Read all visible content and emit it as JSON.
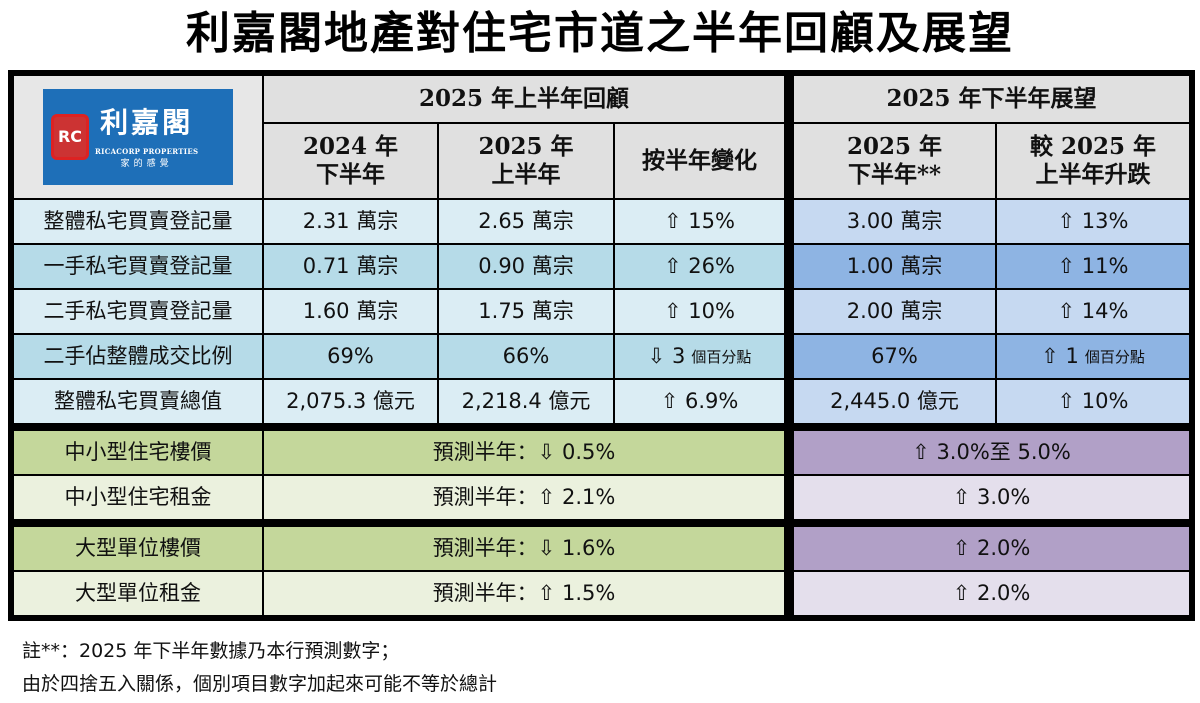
{
  "title": "利嘉閣地產對住宅市道之半年回顧及展望",
  "logo": {
    "mark": "RC",
    "cn": "利嘉閣",
    "en": "RICACORP PROPERTIES",
    "slogan": "家的感覺"
  },
  "headers": {
    "review": "2025 年上半年回顧",
    "outlook": "2025 年下半年展望",
    "cols": [
      [
        "2024 年",
        "下半年"
      ],
      [
        "2025 年",
        "上半年"
      ],
      [
        "按半年變化"
      ],
      [
        "2025 年",
        "下半年**"
      ],
      [
        "較 2025 年",
        "上半年升跌"
      ]
    ]
  },
  "rows": [
    {
      "label": "整體私宅買賣登記量",
      "v": [
        "2.31 萬宗",
        "2.65 萬宗",
        "⇧ 15%",
        "3.00 萬宗",
        "⇧ 13%"
      ]
    },
    {
      "label": "一手私宅買賣登記量",
      "v": [
        "0.71 萬宗",
        "0.90 萬宗",
        "⇧ 26%",
        "1.00 萬宗",
        "⇧ 11%"
      ]
    },
    {
      "label": "二手私宅買賣登記量",
      "v": [
        "1.60 萬宗",
        "1.75 萬宗",
        "⇧ 10%",
        "2.00 萬宗",
        "⇧ 14%"
      ]
    },
    {
      "label": "二手佔整體成交比例",
      "v": [
        "69%",
        "66%",
        "⇩ 3",
        "67%",
        "⇧ 1"
      ],
      "unit": "個百分點"
    },
    {
      "label": "整體私宅買賣總值",
      "v": [
        "2,075.3 億元",
        "2,218.4 億元",
        "⇧ 6.9%",
        "2,445.0 億元",
        "⇧ 10%"
      ]
    }
  ],
  "forecasts": [
    {
      "label": "中小型住宅樓價",
      "review": "預測半年：⇩ 0.5%",
      "outlook": "⇧ 3.0%至 5.0%"
    },
    {
      "label": "中小型住宅租金",
      "review": "預測半年：⇧ 2.1%",
      "outlook": "⇧ 3.0%"
    },
    {
      "label": "大型單位樓價",
      "review": "預測半年：⇩ 1.6%",
      "outlook": "⇧ 2.0%"
    },
    {
      "label": "大型單位租金",
      "review": "預測半年：⇧ 1.5%",
      "outlook": "⇧ 2.0%"
    }
  ],
  "notes": [
    "註**：2025 年下半年數據乃本行預測數字；",
    "由於四捨五入關係，個別項目數字加起來可能不等於總計"
  ],
  "colors": {
    "header": "#e0e0e0",
    "blue_light": "#dbedf4",
    "blue_dark": "#b6dbe8",
    "outlook_light": "#c6d9f1",
    "outlook_dark": "#8eb4e3",
    "green": "#c4d79b",
    "green_light": "#ebf1de",
    "purple": "#b1a0c7",
    "purple_light": "#e4dfec"
  }
}
